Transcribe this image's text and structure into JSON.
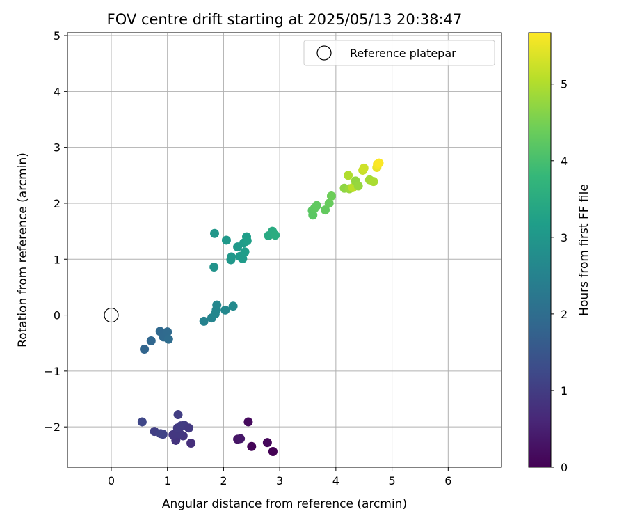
{
  "chart_data": {
    "type": "scatter",
    "title": "FOV centre drift starting at 2025/05/13 20:38:47",
    "xlabel": "Angular distance from reference (arcmin)",
    "ylabel": "Rotation from reference (arcmin)",
    "xlim": [
      -0.78,
      6.95
    ],
    "ylim": [
      -2.72,
      5.05
    ],
    "xticks": [
      0,
      1,
      2,
      3,
      4,
      5,
      6
    ],
    "yticks": [
      -2,
      -1,
      0,
      1,
      2,
      3,
      4,
      5
    ],
    "grid": true,
    "legend": {
      "position": "top-right",
      "entries": [
        "Reference platepar"
      ]
    },
    "reference_point": {
      "x": 0,
      "y": 0,
      "label": "Reference platepar"
    },
    "colorbar": {
      "label": "Hours from first FF file",
      "colormap": "viridis",
      "range": [
        0,
        5.67
      ],
      "ticks": [
        0,
        1,
        2,
        3,
        4,
        5
      ]
    },
    "series": [
      {
        "points": [
          {
            "x": 2.88,
            "y": -2.44,
            "t": 0.0
          },
          {
            "x": 2.5,
            "y": -2.35,
            "t": 0.05
          },
          {
            "x": 2.78,
            "y": -2.28,
            "t": 0.1
          },
          {
            "x": 2.25,
            "y": -2.22,
            "t": 0.3
          },
          {
            "x": 2.3,
            "y": -2.21,
            "t": 0.35
          },
          {
            "x": 2.44,
            "y": -1.91,
            "t": 0.15
          },
          {
            "x": 1.42,
            "y": -2.29,
            "t": 0.75
          },
          {
            "x": 1.15,
            "y": -2.24,
            "t": 0.85
          },
          {
            "x": 1.28,
            "y": -2.16,
            "t": 0.88
          },
          {
            "x": 1.1,
            "y": -2.14,
            "t": 0.9
          },
          {
            "x": 1.22,
            "y": -2.12,
            "t": 0.92
          },
          {
            "x": 1.18,
            "y": -2.02,
            "t": 0.95
          },
          {
            "x": 1.24,
            "y": -1.98,
            "t": 0.98
          },
          {
            "x": 1.3,
            "y": -1.97,
            "t": 1.0
          },
          {
            "x": 1.38,
            "y": -2.02,
            "t": 0.95
          },
          {
            "x": 1.19,
            "y": -1.78,
            "t": 1.02
          },
          {
            "x": 0.77,
            "y": -2.08,
            "t": 1.05
          },
          {
            "x": 0.88,
            "y": -2.12,
            "t": 1.1
          },
          {
            "x": 0.92,
            "y": -2.13,
            "t": 1.12
          },
          {
            "x": 0.55,
            "y": -1.91,
            "t": 1.2
          },
          {
            "x": 0.59,
            "y": -0.61,
            "t": 1.8
          },
          {
            "x": 0.71,
            "y": -0.46,
            "t": 1.85
          },
          {
            "x": 0.87,
            "y": -0.29,
            "t": 1.9
          },
          {
            "x": 0.93,
            "y": -0.39,
            "t": 1.92
          },
          {
            "x": 1.0,
            "y": -0.3,
            "t": 1.95
          },
          {
            "x": 1.02,
            "y": -0.43,
            "t": 1.98
          },
          {
            "x": 1.65,
            "y": -0.11,
            "t": 2.5
          },
          {
            "x": 1.79,
            "y": -0.05,
            "t": 2.55
          },
          {
            "x": 1.85,
            "y": 0.02,
            "t": 2.58
          },
          {
            "x": 1.87,
            "y": 0.09,
            "t": 2.6
          },
          {
            "x": 1.88,
            "y": 0.18,
            "t": 2.62
          },
          {
            "x": 2.03,
            "y": 0.09,
            "t": 2.65
          },
          {
            "x": 2.17,
            "y": 0.16,
            "t": 2.68
          },
          {
            "x": 1.83,
            "y": 0.86,
            "t": 2.9
          },
          {
            "x": 1.84,
            "y": 1.46,
            "t": 3.0
          },
          {
            "x": 2.05,
            "y": 1.34,
            "t": 3.05
          },
          {
            "x": 2.13,
            "y": 0.99,
            "t": 3.0
          },
          {
            "x": 2.14,
            "y": 1.04,
            "t": 3.02
          },
          {
            "x": 2.25,
            "y": 1.22,
            "t": 3.05
          },
          {
            "x": 2.29,
            "y": 1.05,
            "t": 3.08
          },
          {
            "x": 2.34,
            "y": 1.01,
            "t": 3.1
          },
          {
            "x": 2.36,
            "y": 1.29,
            "t": 3.12
          },
          {
            "x": 2.38,
            "y": 1.13,
            "t": 3.15
          },
          {
            "x": 2.41,
            "y": 1.4,
            "t": 3.18
          },
          {
            "x": 2.42,
            "y": 1.33,
            "t": 3.2
          },
          {
            "x": 2.8,
            "y": 1.42,
            "t": 3.45
          },
          {
            "x": 2.87,
            "y": 1.5,
            "t": 3.5
          },
          {
            "x": 2.92,
            "y": 1.43,
            "t": 3.52
          },
          {
            "x": 3.58,
            "y": 1.87,
            "t": 4.2
          },
          {
            "x": 3.59,
            "y": 1.79,
            "t": 4.22
          },
          {
            "x": 3.62,
            "y": 1.91,
            "t": 4.25
          },
          {
            "x": 3.66,
            "y": 1.96,
            "t": 4.28
          },
          {
            "x": 3.81,
            "y": 1.88,
            "t": 4.3
          },
          {
            "x": 3.88,
            "y": 2.0,
            "t": 4.35
          },
          {
            "x": 3.92,
            "y": 2.13,
            "t": 4.4
          },
          {
            "x": 4.15,
            "y": 2.27,
            "t": 4.7
          },
          {
            "x": 4.22,
            "y": 2.5,
            "t": 5.0
          },
          {
            "x": 4.24,
            "y": 2.26,
            "t": 4.8
          },
          {
            "x": 4.3,
            "y": 2.28,
            "t": 5.1
          },
          {
            "x": 4.35,
            "y": 2.4,
            "t": 4.75
          },
          {
            "x": 4.4,
            "y": 2.31,
            "t": 4.78
          },
          {
            "x": 4.48,
            "y": 2.59,
            "t": 5.2
          },
          {
            "x": 4.5,
            "y": 2.63,
            "t": 5.25
          },
          {
            "x": 4.6,
            "y": 2.42,
            "t": 4.9
          },
          {
            "x": 4.67,
            "y": 2.39,
            "t": 4.95
          },
          {
            "x": 4.73,
            "y": 2.64,
            "t": 5.5
          },
          {
            "x": 4.74,
            "y": 2.7,
            "t": 5.6
          },
          {
            "x": 4.77,
            "y": 2.72,
            "t": 5.65
          }
        ]
      }
    ]
  }
}
